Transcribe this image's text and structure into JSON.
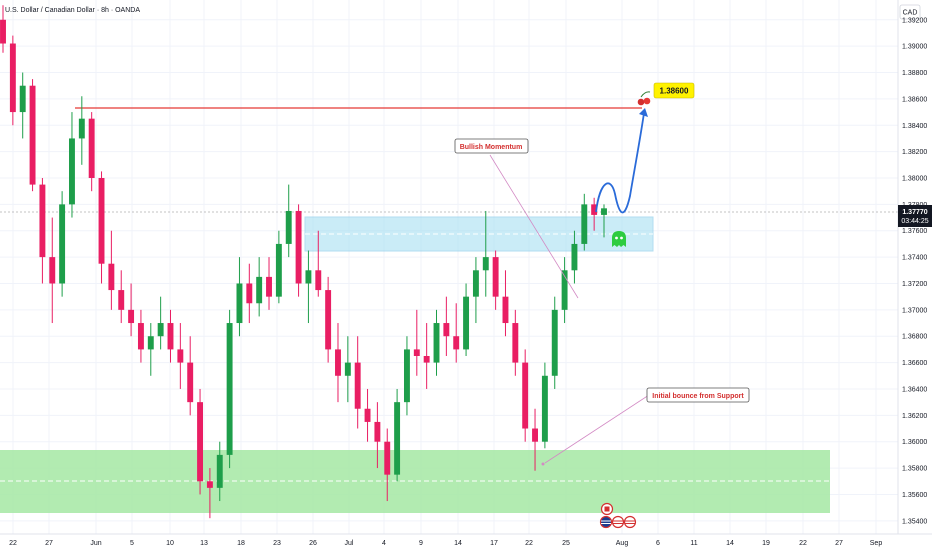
{
  "chart_title": "U.S. Dollar / Canadian Dollar · 8h · OANDA",
  "currency_badge": "CAD",
  "price_label": {
    "price": "1.37770",
    "countdown": "03:44:25"
  },
  "target_label": "1.38600",
  "annotations": {
    "bullish_momentum": "Bullish Momentum",
    "initial_bounce": "Initial bounce from Support"
  },
  "colors": {
    "up": "#1e9e4a",
    "down": "#e91e63",
    "support_zone": "#a5e8a3",
    "resistance_zone": "#a7e0f2",
    "projection": "#2a6bd9",
    "target_line": "#e53935"
  },
  "icons": {
    "target": "cherry-icon",
    "current": "ghost-icon",
    "events": [
      "canada-flag-icon",
      "us-flag-icon",
      "us-flag-icon",
      "us-flag-icon"
    ]
  },
  "chart_data": {
    "type": "candlestick",
    "title": "U.S. Dollar / Canadian Dollar · 8h · OANDA",
    "y_axis": {
      "ticks": [
        "1.39200",
        "1.39000",
        "1.38800",
        "1.38600",
        "1.38400",
        "1.38200",
        "1.38000",
        "1.37800",
        "1.37600",
        "1.37400",
        "1.37200",
        "1.37000",
        "1.36800",
        "1.36600",
        "1.36400",
        "1.36200",
        "1.36000",
        "1.35800",
        "1.35600",
        "1.35400"
      ],
      "range": [
        1.353,
        1.3935
      ]
    },
    "x_axis": {
      "ticks": [
        "22",
        "27",
        "Jun",
        "5",
        "10",
        "13",
        "18",
        "23",
        "26",
        "Jul",
        "4",
        "9",
        "14",
        "17",
        "22",
        "25",
        "Aug",
        "6",
        "11",
        "14",
        "19",
        "22",
        "27",
        "Sep"
      ]
    },
    "series": [
      {
        "time": "May 22",
        "open": 1.392,
        "high": 1.3931,
        "low": 1.3895,
        "close": 1.3902
      },
      {
        "time": "May 23",
        "open": 1.3902,
        "high": 1.3908,
        "low": 1.384,
        "close": 1.385
      },
      {
        "time": "May 24",
        "open": 1.385,
        "high": 1.388,
        "low": 1.383,
        "close": 1.387
      },
      {
        "time": "May 26",
        "open": 1.387,
        "high": 1.3875,
        "low": 1.379,
        "close": 1.3795
      },
      {
        "time": "May 27",
        "open": 1.3795,
        "high": 1.38,
        "low": 1.372,
        "close": 1.374
      },
      {
        "time": "May 28",
        "open": 1.374,
        "high": 1.377,
        "low": 1.369,
        "close": 1.372
      },
      {
        "time": "May 29",
        "open": 1.372,
        "high": 1.379,
        "low": 1.371,
        "close": 1.378
      },
      {
        "time": "May 30",
        "open": 1.378,
        "high": 1.385,
        "low": 1.377,
        "close": 1.383
      },
      {
        "time": "May 31",
        "open": 1.383,
        "high": 1.3862,
        "low": 1.381,
        "close": 1.3845
      },
      {
        "time": "Jun 1",
        "open": 1.3845,
        "high": 1.385,
        "low": 1.379,
        "close": 1.38
      },
      {
        "time": "Jun 2",
        "open": 1.38,
        "high": 1.3805,
        "low": 1.372,
        "close": 1.3735
      },
      {
        "time": "Jun 3",
        "open": 1.3735,
        "high": 1.376,
        "low": 1.37,
        "close": 1.3715
      },
      {
        "time": "Jun 4",
        "open": 1.3715,
        "high": 1.373,
        "low": 1.369,
        "close": 1.37
      },
      {
        "time": "Jun 5",
        "open": 1.37,
        "high": 1.372,
        "low": 1.368,
        "close": 1.369
      },
      {
        "time": "Jun 6",
        "open": 1.369,
        "high": 1.37,
        "low": 1.366,
        "close": 1.367
      },
      {
        "time": "Jun 8",
        "open": 1.367,
        "high": 1.369,
        "low": 1.365,
        "close": 1.368
      },
      {
        "time": "Jun 9",
        "open": 1.368,
        "high": 1.371,
        "low": 1.367,
        "close": 1.369
      },
      {
        "time": "Jun 10",
        "open": 1.369,
        "high": 1.37,
        "low": 1.366,
        "close": 1.367
      },
      {
        "time": "Jun 11",
        "open": 1.367,
        "high": 1.369,
        "low": 1.364,
        "close": 1.366
      },
      {
        "time": "Jun 12",
        "open": 1.366,
        "high": 1.368,
        "low": 1.362,
        "close": 1.363
      },
      {
        "time": "Jun 13",
        "open": 1.363,
        "high": 1.364,
        "low": 1.356,
        "close": 1.357
      },
      {
        "time": "Jun 14",
        "open": 1.357,
        "high": 1.358,
        "low": 1.3542,
        "close": 1.3565
      },
      {
        "time": "Jun 15",
        "open": 1.3565,
        "high": 1.36,
        "low": 1.3555,
        "close": 1.359
      },
      {
        "time": "Jun 16",
        "open": 1.359,
        "high": 1.37,
        "low": 1.358,
        "close": 1.369
      },
      {
        "time": "Jun 17",
        "open": 1.369,
        "high": 1.374,
        "low": 1.368,
        "close": 1.372
      },
      {
        "time": "Jun 18",
        "open": 1.372,
        "high": 1.3735,
        "low": 1.369,
        "close": 1.3705
      },
      {
        "time": "Jun 19",
        "open": 1.3705,
        "high": 1.374,
        "low": 1.3695,
        "close": 1.3725
      },
      {
        "time": "Jun 20",
        "open": 1.3725,
        "high": 1.374,
        "low": 1.37,
        "close": 1.371
      },
      {
        "time": "Jun 22",
        "open": 1.371,
        "high": 1.376,
        "low": 1.3705,
        "close": 1.375
      },
      {
        "time": "Jun 23",
        "open": 1.375,
        "high": 1.3795,
        "low": 1.374,
        "close": 1.3775
      },
      {
        "time": "Jun 24",
        "open": 1.3775,
        "high": 1.378,
        "low": 1.371,
        "close": 1.372
      },
      {
        "time": "Jun 25",
        "open": 1.372,
        "high": 1.3745,
        "low": 1.369,
        "close": 1.373
      },
      {
        "time": "Jun 26",
        "open": 1.373,
        "high": 1.376,
        "low": 1.371,
        "close": 1.3715
      },
      {
        "time": "Jun 27",
        "open": 1.3715,
        "high": 1.3725,
        "low": 1.366,
        "close": 1.367
      },
      {
        "time": "Jun 28",
        "open": 1.367,
        "high": 1.369,
        "low": 1.363,
        "close": 1.365
      },
      {
        "time": "Jun 30",
        "open": 1.365,
        "high": 1.368,
        "low": 1.363,
        "close": 1.366
      },
      {
        "time": "Jul 1",
        "open": 1.366,
        "high": 1.368,
        "low": 1.361,
        "close": 1.3625
      },
      {
        "time": "Jul 2",
        "open": 1.3625,
        "high": 1.364,
        "low": 1.36,
        "close": 1.3615
      },
      {
        "time": "Jul 3",
        "open": 1.3615,
        "high": 1.363,
        "low": 1.358,
        "close": 1.36
      },
      {
        "time": "Jul 4",
        "open": 1.36,
        "high": 1.361,
        "low": 1.3555,
        "close": 1.3575
      },
      {
        "time": "Jul 5",
        "open": 1.3575,
        "high": 1.364,
        "low": 1.357,
        "close": 1.363
      },
      {
        "time": "Jul 7",
        "open": 1.363,
        "high": 1.368,
        "low": 1.362,
        "close": 1.367
      },
      {
        "time": "Jul 8",
        "open": 1.367,
        "high": 1.37,
        "low": 1.365,
        "close": 1.3665
      },
      {
        "time": "Jul 9",
        "open": 1.3665,
        "high": 1.369,
        "low": 1.364,
        "close": 1.366
      },
      {
        "time": "Jul 10",
        "open": 1.366,
        "high": 1.37,
        "low": 1.365,
        "close": 1.369
      },
      {
        "time": "Jul 11",
        "open": 1.369,
        "high": 1.371,
        "low": 1.3665,
        "close": 1.368
      },
      {
        "time": "Jul 12",
        "open": 1.368,
        "high": 1.3705,
        "low": 1.366,
        "close": 1.367
      },
      {
        "time": "Jul 14",
        "open": 1.367,
        "high": 1.372,
        "low": 1.3665,
        "close": 1.371
      },
      {
        "time": "Jul 15",
        "open": 1.371,
        "high": 1.374,
        "low": 1.369,
        "close": 1.373
      },
      {
        "time": "Jul 16",
        "open": 1.373,
        "high": 1.3775,
        "low": 1.371,
        "close": 1.374
      },
      {
        "time": "Jul 17",
        "open": 1.374,
        "high": 1.3745,
        "low": 1.37,
        "close": 1.371
      },
      {
        "time": "Jul 18",
        "open": 1.371,
        "high": 1.373,
        "low": 1.368,
        "close": 1.369
      },
      {
        "time": "Jul 19",
        "open": 1.369,
        "high": 1.37,
        "low": 1.365,
        "close": 1.366
      },
      {
        "time": "Jul 21",
        "open": 1.366,
        "high": 1.367,
        "low": 1.36,
        "close": 1.361
      },
      {
        "time": "Jul 22",
        "open": 1.361,
        "high": 1.3625,
        "low": 1.3578,
        "close": 1.36
      },
      {
        "time": "Jul 23",
        "open": 1.36,
        "high": 1.366,
        "low": 1.3595,
        "close": 1.365
      },
      {
        "time": "Jul 24",
        "open": 1.365,
        "high": 1.371,
        "low": 1.364,
        "close": 1.37
      },
      {
        "time": "Jul 25",
        "open": 1.37,
        "high": 1.374,
        "low": 1.369,
        "close": 1.373
      },
      {
        "time": "Jul 26",
        "open": 1.373,
        "high": 1.376,
        "low": 1.372,
        "close": 1.375
      },
      {
        "time": "Jul 28",
        "open": 1.375,
        "high": 1.3788,
        "low": 1.3745,
        "close": 1.378
      },
      {
        "time": "Jul 29",
        "open": 1.378,
        "high": 1.3785,
        "low": 1.376,
        "close": 1.3772
      },
      {
        "time": "Jul 30",
        "open": 1.3772,
        "high": 1.378,
        "low": 1.3755,
        "close": 1.3777
      }
    ]
  }
}
